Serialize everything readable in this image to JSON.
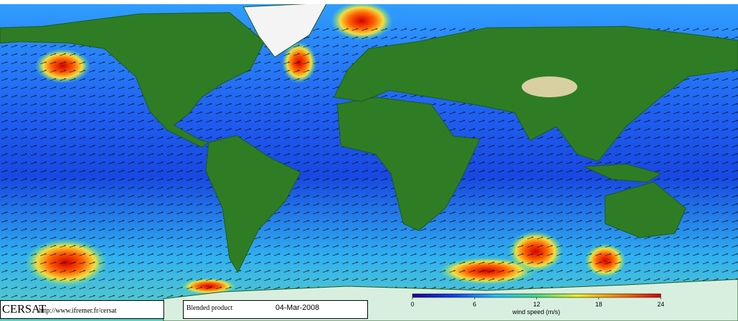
{
  "footer": {
    "logo": "CERSAT",
    "url": "http://www.ifremer.fr/cersat",
    "product": "Blended product",
    "date": "04-Mar-2008"
  },
  "colorbar": {
    "label": "wind speed (m/s)",
    "lim": [
      0,
      24
    ],
    "ticks": [
      0,
      6,
      12,
      18,
      24
    ],
    "colors": [
      "#1a00a0",
      "#1040ff",
      "#20c0ff",
      "#40e080",
      "#f0f020",
      "#ff8000",
      "#e00000"
    ]
  }
}
